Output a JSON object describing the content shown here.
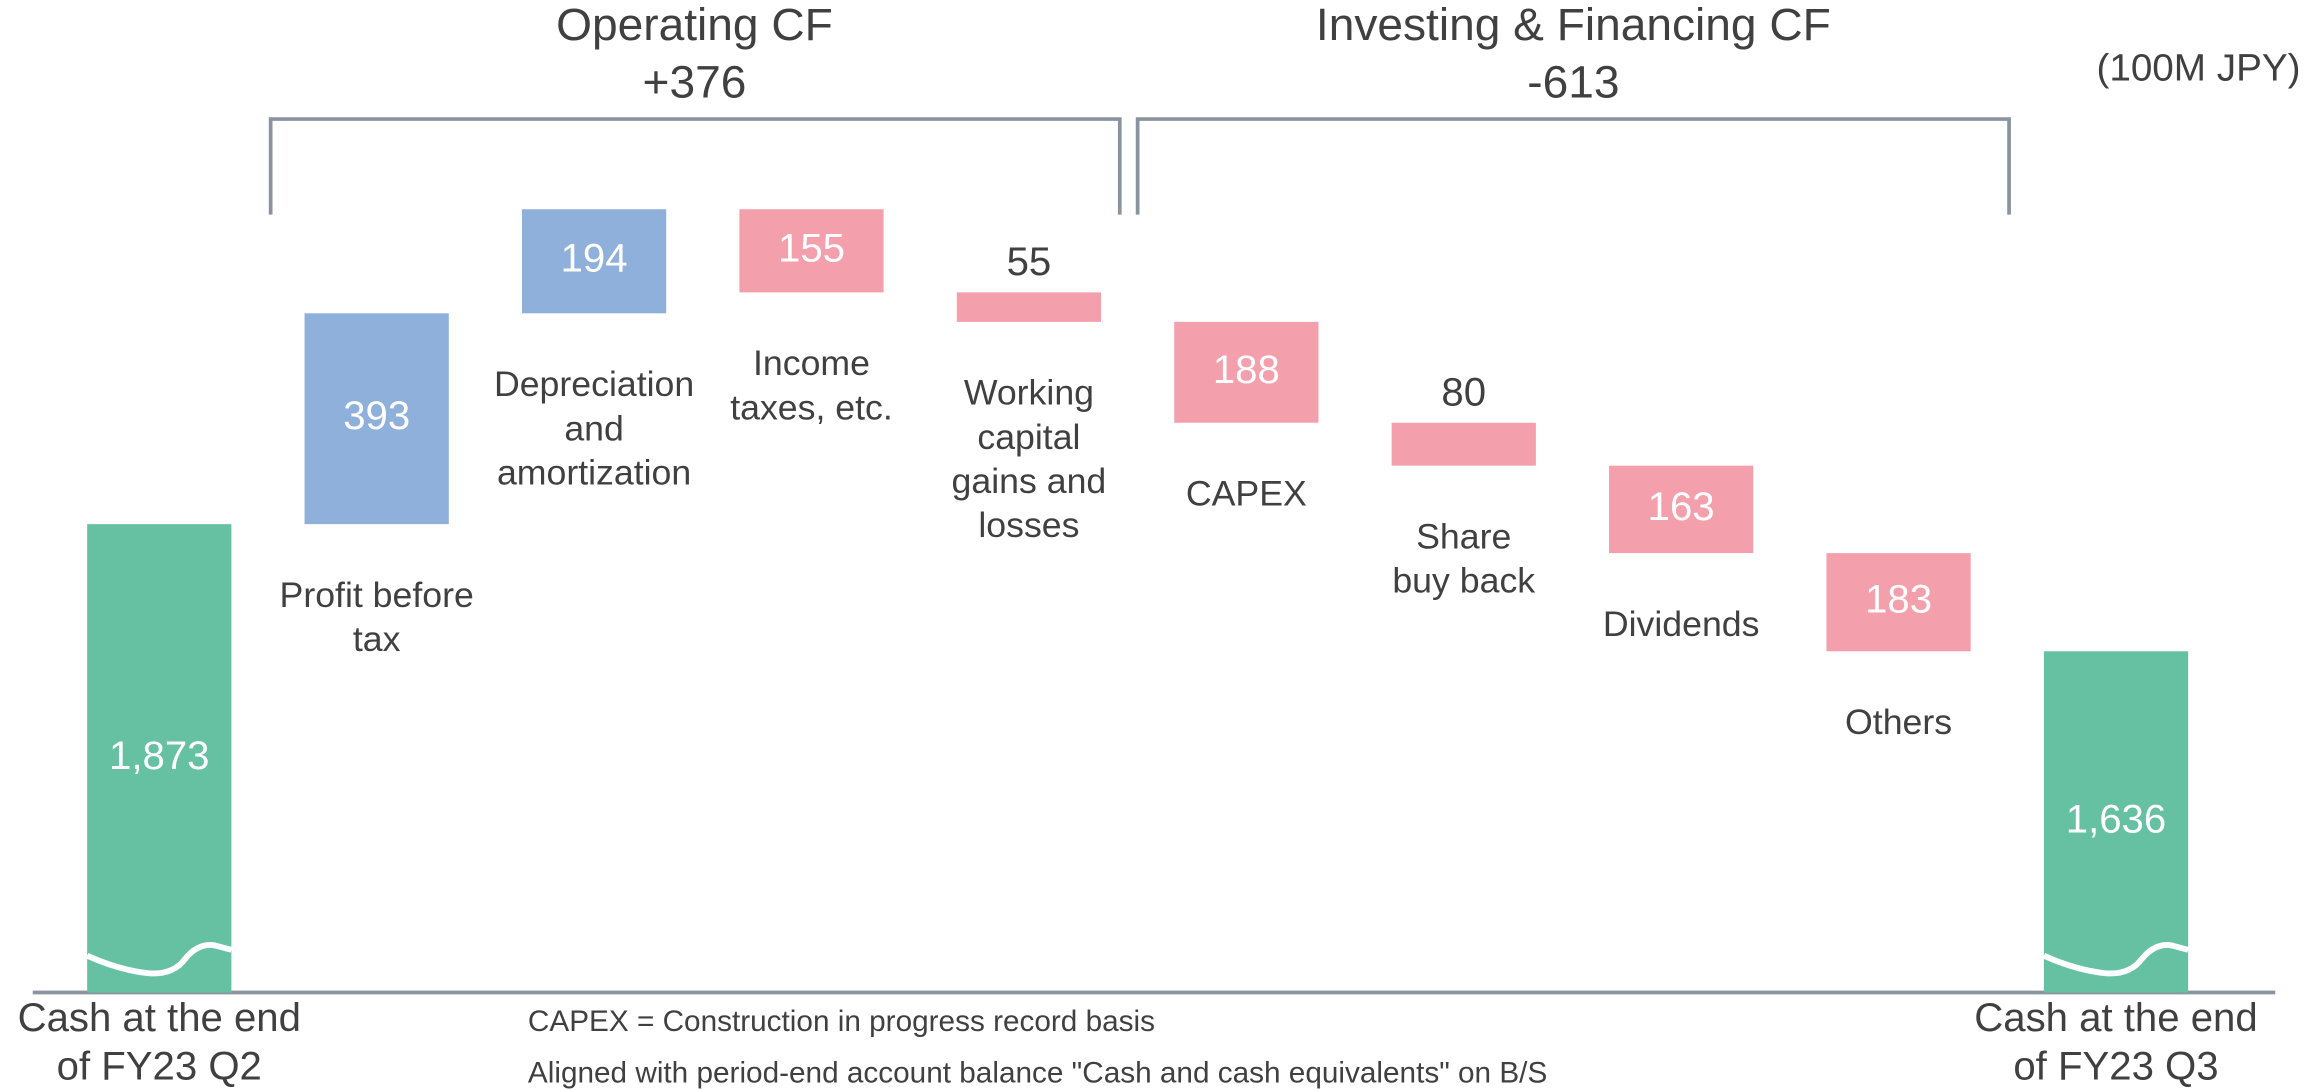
{
  "chart_data": {
    "type": "waterfall",
    "unit": "(100M JPY)",
    "categories": [
      [
        "Cash at the end",
        "of FY23 Q2"
      ],
      [
        "Profit before",
        "tax"
      ],
      [
        "Depreciation",
        "and",
        "amortization"
      ],
      [
        "Income",
        "taxes, etc."
      ],
      [
        "Working",
        "capital",
        "gains and",
        "losses"
      ],
      [
        "CAPEX"
      ],
      [
        "Share",
        "buy back"
      ],
      [
        "Dividends"
      ],
      [
        "Others"
      ],
      [
        "Cash at the end",
        "of FY23 Q3"
      ]
    ],
    "values": [
      1873,
      393,
      194,
      -155,
      -55,
      -188,
      -80,
      -163,
      -183,
      1636
    ],
    "value_labels": [
      "1,873",
      "393",
      "194",
      "155",
      "55",
      "188",
      "80",
      "163",
      "183",
      "1,636"
    ],
    "measures": [
      "total",
      "relative",
      "relative",
      "relative",
      "relative",
      "relative",
      "relative",
      "relative",
      "relative",
      "total"
    ],
    "colors": {
      "total": "#66c1a2",
      "increase": "#8eb0da",
      "decrease": "#f4a0ac"
    },
    "ylim": [
      1000,
      2850
    ],
    "axis_break": true,
    "annotations": [
      {
        "title": "Operating CF",
        "text": "+376"
      },
      {
        "title": "Investing & Financing CF",
        "text": "-613"
      }
    ],
    "notes": [
      "CAPEX = Construction in progress record basis",
      "Aligned with period-end account balance \"Cash and cash equivalents\" on B/S"
    ]
  }
}
